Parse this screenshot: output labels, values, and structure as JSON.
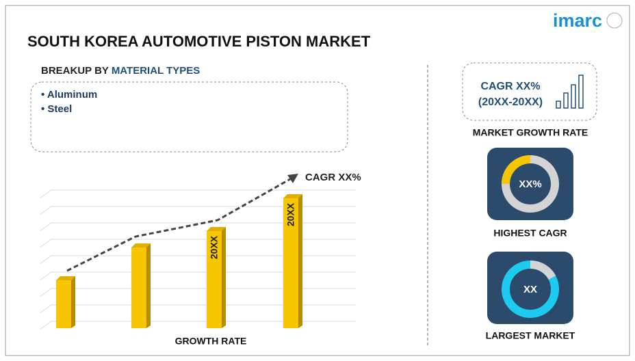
{
  "logo": "imarc",
  "title": "SOUTH KOREA AUTOMOTIVE PISTON MARKET",
  "breakup": {
    "prefix": "BREAKUP BY",
    "highlight": "MATERIAL TYPES",
    "items": [
      "• Aluminum",
      "• Steel"
    ]
  },
  "growth_chart": {
    "cagr_label": "CAGR XX%",
    "bar_labels": [
      "20XX",
      "20XX"
    ],
    "caption": "GROWTH RATE"
  },
  "market_growth": {
    "line1": "CAGR XX%",
    "line2": "(20XX-20XX)",
    "caption": "MARKET GROWTH RATE"
  },
  "highest_cagr": {
    "value": "XX%",
    "caption": "HIGHEST CAGR"
  },
  "largest_market": {
    "value": "XX",
    "caption": "LARGEST MARKET"
  }
}
